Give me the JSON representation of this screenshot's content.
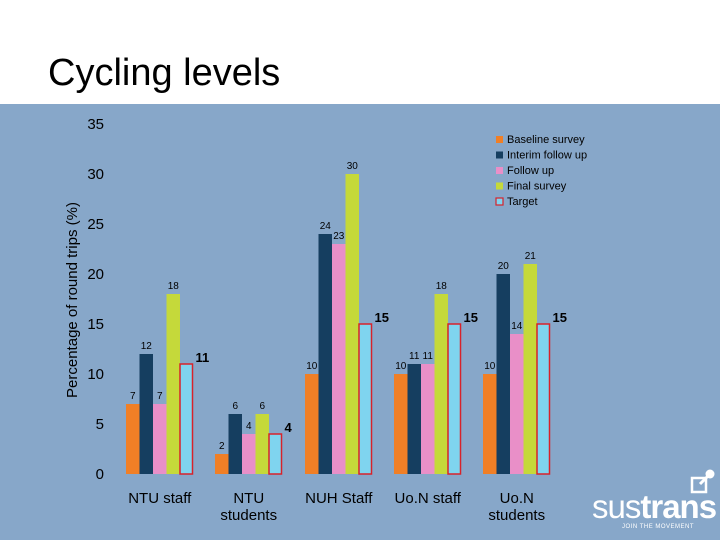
{
  "slide": {
    "title": "Cycling levels"
  },
  "brand": {
    "name_part1": "sus",
    "name_part2": "trans",
    "tagline": "JOIN THE MOVEMENT"
  },
  "colors": {
    "panel_background": "#87a7c9",
    "baseline": "#f07f26",
    "interim": "#153e60",
    "follow_up": "#e98fc8",
    "final": "#c5d93a",
    "target_fill": "#7fd4ef",
    "target_border": "#d8222a"
  },
  "chart_data": {
    "type": "bar",
    "title": "",
    "xlabel": "",
    "ylabel": "Percentage of round trips (%)",
    "ylim": [
      0,
      35
    ],
    "yticks": [
      0,
      5,
      10,
      15,
      20,
      25,
      30,
      35
    ],
    "grid": false,
    "legend_position": "top-right",
    "categories": [
      [
        "NTU staff"
      ],
      [
        "NTU",
        "students"
      ],
      [
        "NUH Staff"
      ],
      [
        "Uo.N staff"
      ],
      [
        "Uo.N",
        "students"
      ]
    ],
    "series": [
      {
        "name": "Baseline survey",
        "key": "baseline",
        "values": [
          7,
          2,
          10,
          10,
          10
        ]
      },
      {
        "name": "Interim follow up",
        "key": "interim",
        "values": [
          12,
          6,
          24,
          11,
          20
        ]
      },
      {
        "name": "Follow up",
        "key": "follow_up",
        "values": [
          7,
          4,
          23,
          11,
          14
        ]
      },
      {
        "name": "Final survey",
        "key": "final",
        "values": [
          18,
          6,
          30,
          18,
          21
        ]
      },
      {
        "name": "Target",
        "key": "target",
        "values": [
          11,
          4,
          15,
          15,
          15
        ]
      }
    ]
  }
}
